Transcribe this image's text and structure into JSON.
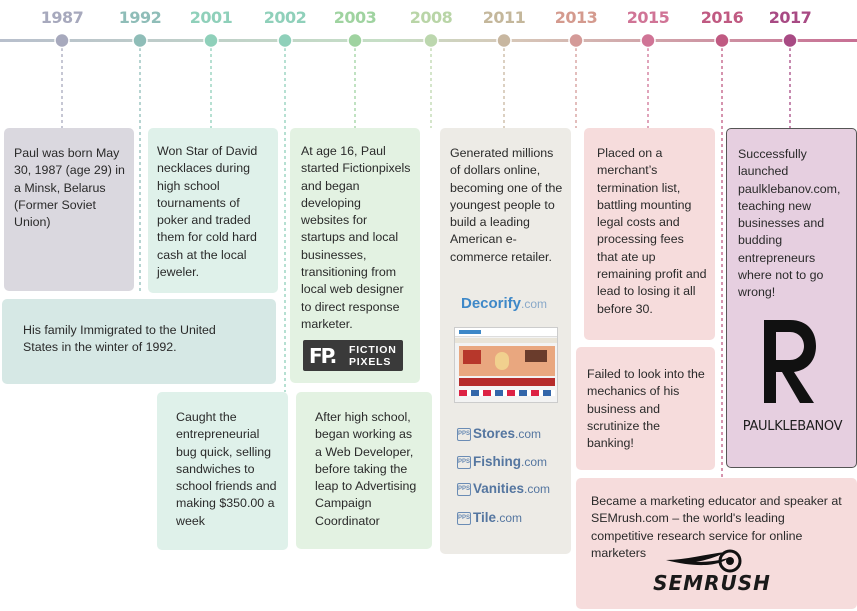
{
  "colors": {
    "line_left": "#b7c4c9",
    "line_mid": "#c8dcc8",
    "line_right": "#c98aa0"
  },
  "timeline": {
    "years": [
      {
        "label": "1987",
        "color": "#a7a9bd",
        "dot": "#a7a9bd"
      },
      {
        "label": "1992",
        "color": "#8fbdb8",
        "dot": "#8fbdb8"
      },
      {
        "label": "2001",
        "color": "#8fd0ba",
        "dot": "#8fd0ba"
      },
      {
        "label": "2002",
        "color": "#8fd0ba",
        "dot": "#8fd0ba"
      },
      {
        "label": "2003",
        "color": "#9fd3a0",
        "dot": "#9fd3a0"
      },
      {
        "label": "2008",
        "color": "#b9d5a7",
        "dot": "#bcd7ae"
      },
      {
        "label": "2011",
        "color": "#c4b79b",
        "dot": "#c8b7a0"
      },
      {
        "label": "2013",
        "color": "#d49a8e",
        "dot": "#d49a98"
      },
      {
        "label": "2015",
        "color": "#d07496",
        "dot": "#d07496"
      },
      {
        "label": "2016",
        "color": "#c05a82",
        "dot": "#c05a82"
      },
      {
        "label": "2017",
        "color": "#a84a84",
        "dot": "#a84a84"
      }
    ]
  },
  "events": {
    "born": "Paul was born May 30, 1987 (age 29) in a Minsk, Belarus (Former Soviet Union)",
    "immigrated": "His family Immigrated to the United States in the winter of 1992.",
    "star_of_david": "Won Star of David necklaces during high school tournaments of poker and traded them for cold hard cash at the local jeweler.",
    "entrepreneurial": "Caught the entrepreneurial bug quick, selling sandwiches to school friends and making $350.00 a week",
    "fictionpixels": "At age 16, Paul started Fictionpixels and began developing websites for startups and local businesses, transitioning from local web designer to direct response marketer.",
    "web_developer": "After high school, began working as a Web Developer, before taking the leap to Advertising Campaign Coordinator",
    "generated_millions": "Generated millions of dollars online, becoming one of the youngest people to build a leading American e-commerce retailer.",
    "termination": "Placed on a merchant’s termination list, battling mounting legal costs and processing fees that ate up remaining profit and lead to losing it all before 30.",
    "failed": "Failed to look into the mechanics of his business and scrutinize the banking!",
    "launched": "Successfully launched paulklebanov.com, teaching new businesses and budding entrepreneurs where not to go wrong!",
    "semrush": "Became a marketing educator and speaker at SEMrush.com – the world's leading competitive research service for online marketers"
  },
  "logos": {
    "fiction_pixels": {
      "mark": "FP.",
      "line1": "FICTION",
      "line2": "PIXELS"
    },
    "decorify": {
      "name": "Decorify",
      "suffix": ".com"
    },
    "shops": [
      {
        "name": "Stores",
        "suffix": ".com"
      },
      {
        "name": "Fishing",
        "suffix": ".com"
      },
      {
        "name": "Vanities",
        "suffix": ".com"
      },
      {
        "name": "Tile",
        "suffix": ".com"
      }
    ],
    "shop_badge": "PPS",
    "paul_klebanov": "PAULKLEBANOV",
    "semrush": "SEMRUSH"
  }
}
